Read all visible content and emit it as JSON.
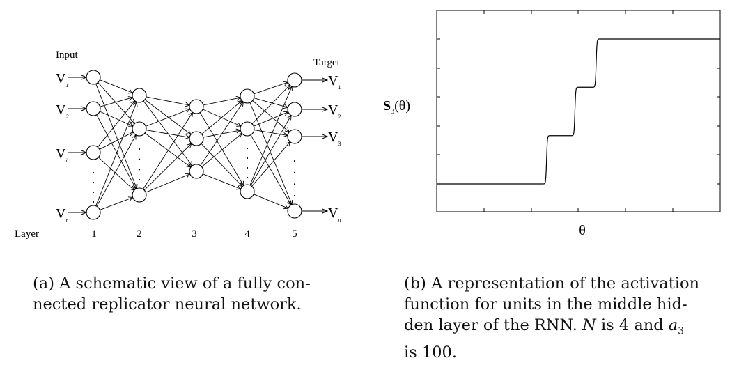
{
  "figure_a": {
    "input_label": "Input",
    "target_label": "Target",
    "layer_label": "Layer",
    "layer_numbers": [
      "1",
      "2",
      "3",
      "4",
      "5"
    ],
    "input_symbols": [
      {
        "letter": "V",
        "sub": "1"
      },
      {
        "letter": "V",
        "sub": "2"
      },
      {
        "letter": "V",
        "sub": "i"
      },
      {
        "letter": "V",
        "sub": "n"
      }
    ],
    "target_symbols": [
      {
        "letter": "V",
        "sub": "1"
      },
      {
        "letter": "V",
        "sub": "2"
      },
      {
        "letter": "V",
        "sub": "3"
      },
      {
        "letter": "V",
        "sub": "n"
      }
    ]
  },
  "figure_b": {
    "y_label_main": "S",
    "y_label_sub": "3",
    "y_label_arg": "(θ)",
    "x_label": "θ"
  },
  "chart_data": {
    "type": "line",
    "title": "",
    "xlabel": "θ",
    "ylabel": "S3(θ)",
    "grid": false,
    "description_source": "caption (b)",
    "N": 4,
    "a3": 100,
    "x": [
      -1.0,
      -0.25,
      -0.2,
      -0.05,
      0.0,
      0.05,
      0.2,
      0.25,
      1.0
    ],
    "values": [
      0,
      0,
      0.333,
      0.333,
      0.667,
      0.667,
      1.0,
      1.0,
      1.0
    ],
    "steps": 4
  },
  "captions": {
    "a": {
      "prefix": "(a)",
      "lines": [
        "A schematic view of a fully con-",
        "nected replicator neural network."
      ]
    },
    "b": {
      "prefix": "(b)",
      "line1": "A representation of the activation",
      "line2": "function for units in the middle hid-",
      "line3_before": "den layer of the RNN.",
      "n_var": "N",
      "line3_mid": "is 4 and",
      "a_var": "a",
      "a_sub": "3",
      "line4": "is 100."
    }
  }
}
